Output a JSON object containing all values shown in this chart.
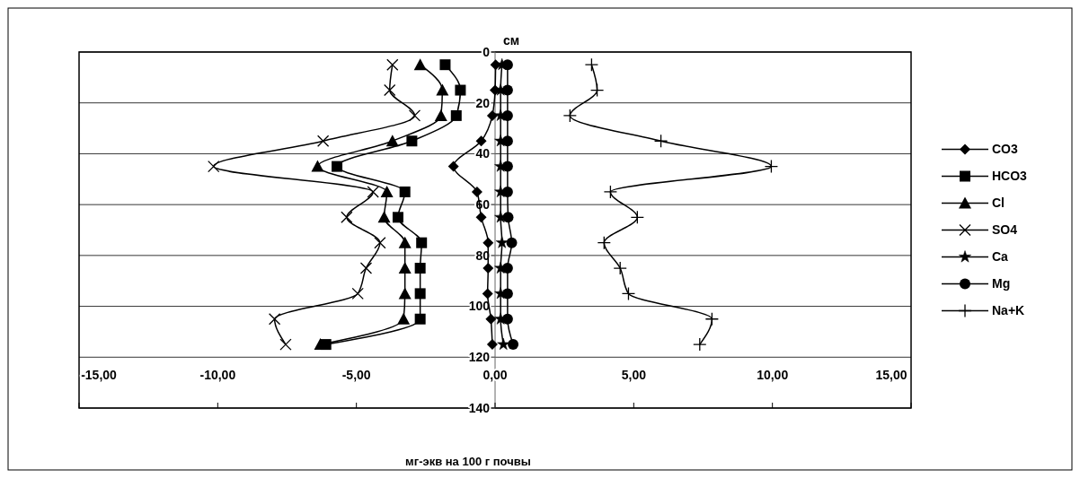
{
  "chart_data": {
    "type": "line",
    "xlabel": "мг-экв на 100 г почвы",
    "ylabel": "см",
    "xlim": [
      -15,
      15
    ],
    "xticks": [
      {
        "value": -15,
        "label": "-15,00"
      },
      {
        "value": -10,
        "label": "-10,00"
      },
      {
        "value": -5,
        "label": "-5,00"
      },
      {
        "value": 0,
        "label": "0,00"
      },
      {
        "value": 5,
        "label": "5,00"
      },
      {
        "value": 10,
        "label": "10,00"
      },
      {
        "value": 15,
        "label": "15,00"
      }
    ],
    "ylim": [
      140,
      0
    ],
    "yticks": [
      0,
      20,
      40,
      60,
      80,
      100,
      120,
      140
    ],
    "grid": "y",
    "legend": "right",
    "line_style": "solid",
    "series": [
      {
        "name": "CO3",
        "color": "#000000",
        "marker": "diamond",
        "x": [
          0.02,
          0.0,
          -0.1,
          -0.5,
          -1.5,
          -0.65,
          -0.5,
          -0.25,
          -0.25,
          -0.27,
          -0.15,
          -0.1
        ],
        "values": [
          5,
          15,
          25,
          35,
          45,
          55,
          65,
          75,
          85,
          95,
          105,
          115
        ]
      },
      {
        "name": "HCO3",
        "color": "#000000",
        "marker": "square",
        "x": [
          -1.8,
          -1.25,
          -1.4,
          -3.0,
          -5.7,
          -3.25,
          -3.5,
          -2.65,
          -2.7,
          -2.7,
          -2.7,
          -6.1
        ],
        "values": [
          5,
          15,
          25,
          35,
          45,
          55,
          65,
          75,
          85,
          95,
          105,
          115
        ]
      },
      {
        "name": "Cl",
        "color": "#000000",
        "marker": "triangle",
        "x": [
          -2.7,
          -1.9,
          -1.95,
          -3.7,
          -6.4,
          -3.9,
          -4.0,
          -3.25,
          -3.25,
          -3.25,
          -3.3,
          -6.3
        ],
        "values": [
          5,
          15,
          25,
          35,
          45,
          55,
          65,
          75,
          85,
          95,
          105,
          115
        ]
      },
      {
        "name": "SO4",
        "color": "#000000",
        "marker": "cross",
        "x": [
          -3.7,
          -3.8,
          -2.9,
          -6.2,
          -10.15,
          -4.4,
          -5.35,
          -4.15,
          -4.65,
          -4.95,
          -7.95,
          -7.55
        ],
        "values": [
          5,
          15,
          25,
          35,
          45,
          55,
          65,
          75,
          85,
          95,
          105,
          115
        ]
      },
      {
        "name": "Ca",
        "color": "#000000",
        "marker": "star",
        "x": [
          0.25,
          0.2,
          0.2,
          0.2,
          0.2,
          0.2,
          0.2,
          0.25,
          0.2,
          0.2,
          0.2,
          0.3
        ],
        "values": [
          5,
          15,
          25,
          35,
          45,
          55,
          65,
          75,
          85,
          95,
          105,
          115
        ]
      },
      {
        "name": "Mg",
        "color": "#000000",
        "marker": "circle",
        "x": [
          0.45,
          0.45,
          0.45,
          0.45,
          0.45,
          0.45,
          0.47,
          0.6,
          0.45,
          0.45,
          0.45,
          0.65
        ],
        "values": [
          5,
          15,
          25,
          35,
          45,
          55,
          65,
          75,
          85,
          95,
          105,
          115
        ]
      },
      {
        "name": "Na+K",
        "color": "#000000",
        "marker": "plus",
        "x": [
          3.48,
          3.68,
          2.7,
          5.98,
          9.96,
          4.16,
          5.13,
          3.93,
          4.51,
          4.81,
          7.82,
          7.38
        ],
        "values": [
          5,
          15,
          25,
          35,
          45,
          55,
          65,
          75,
          85,
          95,
          105,
          115
        ]
      }
    ]
  }
}
